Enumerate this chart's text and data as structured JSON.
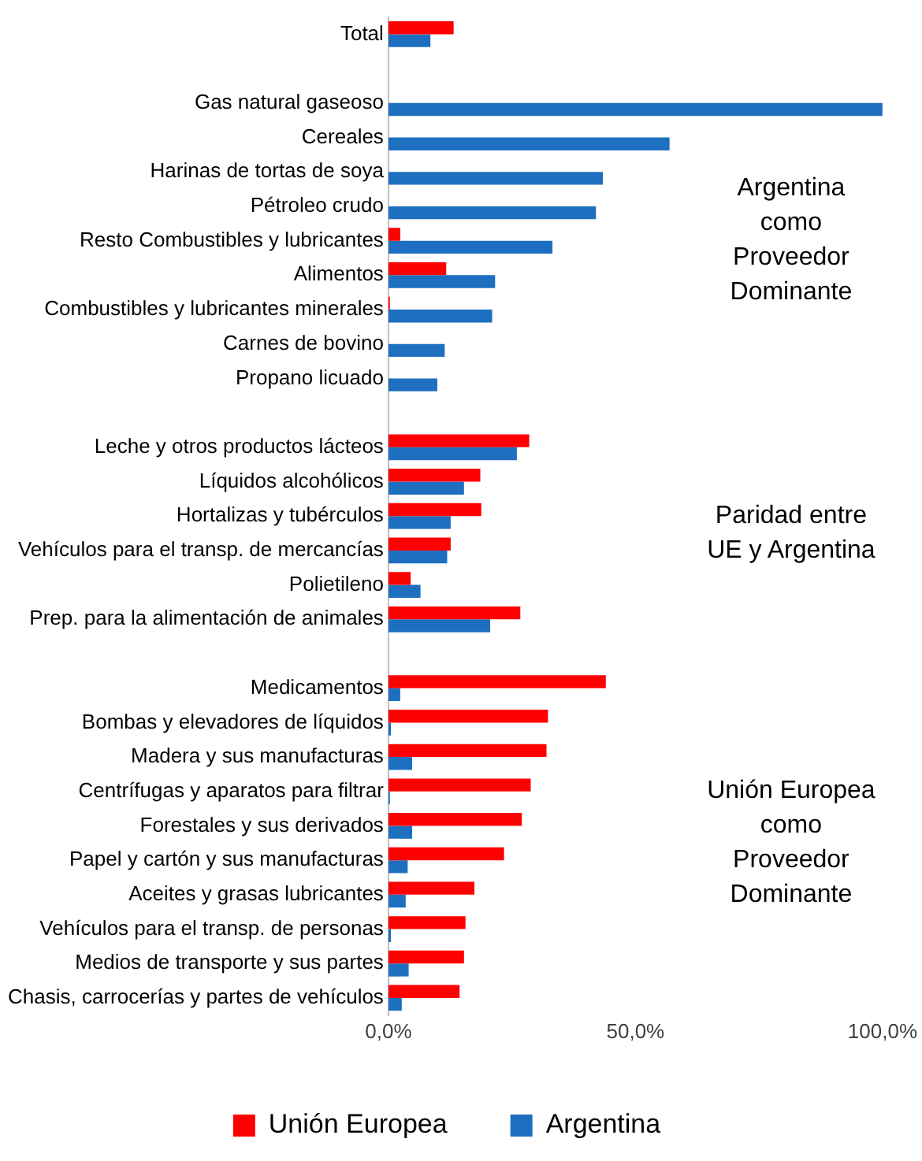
{
  "chart_data": {
    "type": "bar",
    "orientation": "horizontal",
    "categories": [
      "Total",
      null,
      "Gas natural gaseoso",
      "Cereales",
      "Harinas de tortas de soya",
      "Pétroleo crudo",
      "Resto Combustibles y lubricantes",
      "Alimentos",
      "Combustibles y lubricantes minerales",
      "Carnes de bovino",
      "Propano licuado",
      null,
      "Leche y otros productos lácteos",
      "Líquidos alcohólicos",
      "Hortalizas y tubérculos",
      "Vehículos para el transp. de mercancías",
      "Polietileno",
      "Prep. para la alimentación de animales",
      null,
      "Medicamentos",
      "Bombas y elevadores de líquidos",
      "Madera y sus manufacturas",
      "Centrífugas y aparatos para filtrar",
      "Forestales y sus derivados",
      "Papel y cartón y sus manufacturas",
      "Aceites y grasas lubricantes",
      "Vehículos para el transp. de personas",
      "Medios de transporte y sus partes",
      "Chasis, carrocerías y partes de vehículos"
    ],
    "series": [
      {
        "name": "Unión Europea",
        "color": "#ff0000",
        "values": [
          13.2,
          null,
          0,
          0,
          0,
          0,
          2.4,
          11.7,
          0.3,
          0,
          0,
          null,
          28.5,
          18.6,
          18.8,
          12.6,
          4.5,
          26.7,
          null,
          44.0,
          32.3,
          32.0,
          28.8,
          27.0,
          23.4,
          17.4,
          15.6,
          15.3,
          14.4
        ]
      },
      {
        "name": "Argentina",
        "color": "#1f6fc1",
        "values": [
          8.5,
          null,
          100,
          56.9,
          43.4,
          42.0,
          33.2,
          21.6,
          21.0,
          11.4,
          9.9,
          null,
          26.0,
          15.3,
          12.6,
          11.9,
          6.5,
          20.6,
          null,
          2.4,
          0.5,
          4.8,
          0.3,
          4.8,
          3.9,
          3.5,
          0.5,
          4.1,
          2.7
        ]
      }
    ],
    "xlim": [
      0,
      100
    ],
    "xticks": [
      {
        "value": 0,
        "label": "0,0%"
      },
      {
        "value": 50,
        "label": "50,0%"
      },
      {
        "value": 100,
        "label": "100,0%"
      }
    ],
    "legend": "bottom",
    "grid": false,
    "annotations": [
      "Argentina como Proveedor Dominante",
      "Paridad entre UE y Argentina",
      "Unión Europea como Proveedor Dominante"
    ]
  }
}
